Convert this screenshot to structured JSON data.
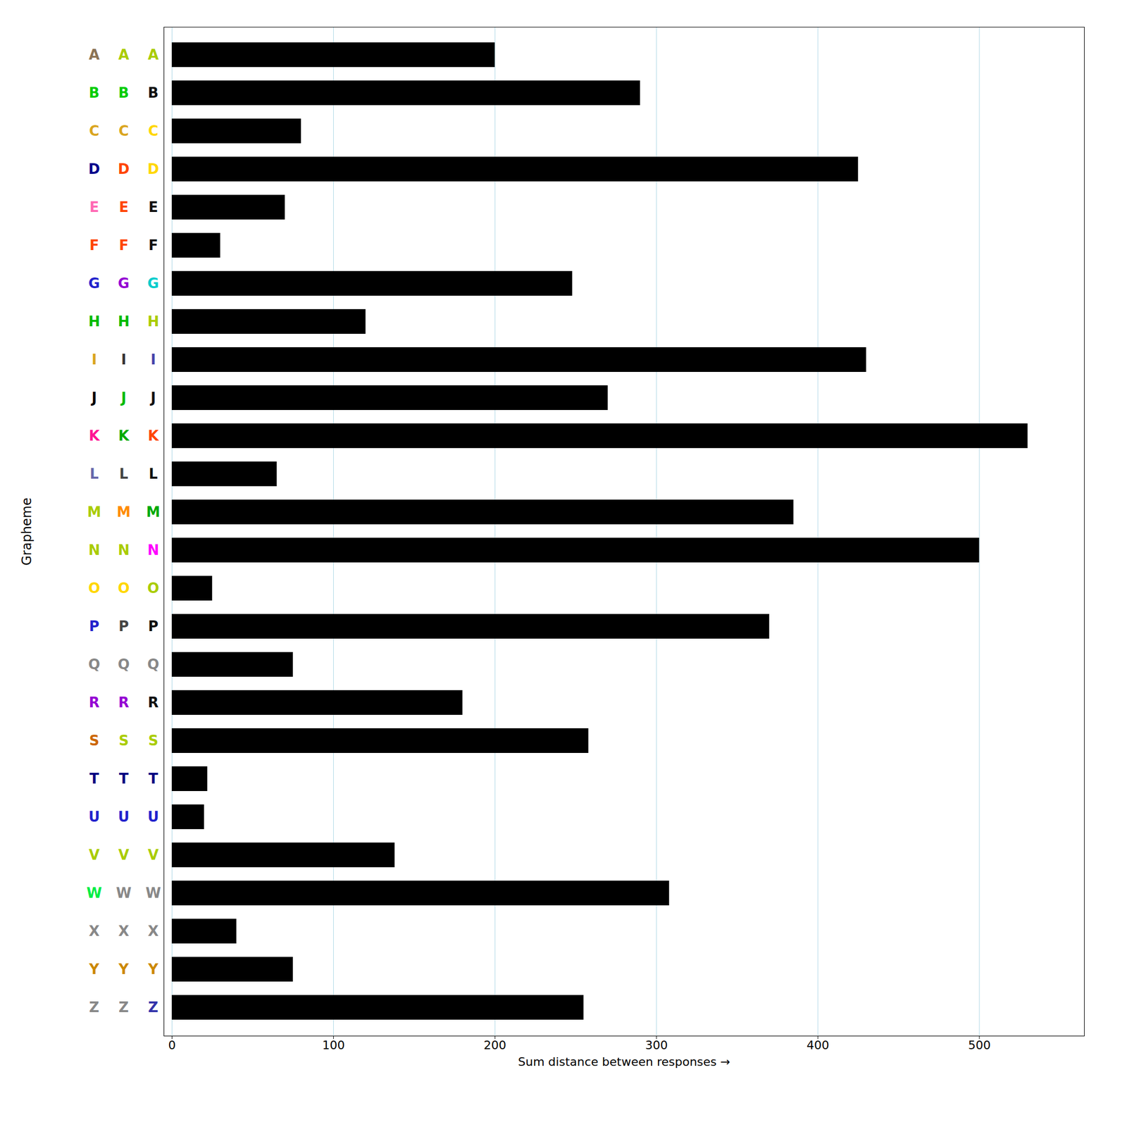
{
  "chart_data": {
    "type": "bar",
    "orientation": "horizontal",
    "categories": [
      "A",
      "B",
      "C",
      "D",
      "E",
      "F",
      "G",
      "H",
      "I",
      "J",
      "K",
      "L",
      "M",
      "N",
      "O",
      "P",
      "Q",
      "R",
      "S",
      "T",
      "U",
      "V",
      "W",
      "X",
      "Y",
      "Z"
    ],
    "values": [
      200,
      290,
      80,
      425,
      70,
      30,
      248,
      120,
      430,
      270,
      530,
      65,
      385,
      500,
      25,
      370,
      75,
      180,
      258,
      22,
      20,
      138,
      308,
      40,
      75,
      255
    ],
    "color": "#000000",
    "label_colors": [
      [
        "#8B7355",
        "#00CC00",
        "#DAA520",
        "#00008B",
        "#FF69B4",
        "#FF4500",
        "#2222CC",
        "#00BB00",
        "#DAA520",
        "#000000",
        "#FF1493",
        "#6666AA",
        "#AACC00",
        "#AACC00",
        "#FFD700",
        "#2222CC",
        "#888888",
        "#9400D3",
        "#CC6600",
        "#000080",
        "#2222CC",
        "#AACC00",
        "#00EE44",
        "#888888",
        "#CC8800",
        "#888888"
      ],
      [
        "#AACC00",
        "#00CC00",
        "#DAA520",
        "#FF4500",
        "#FF4500",
        "#FF4500",
        "#9400D3",
        "#00BB00",
        "#333333",
        "#00BB00",
        "#00AA00",
        "#444444",
        "#FF8C00",
        "#AACC00",
        "#FFD700",
        "#444444",
        "#888888",
        "#9400D3",
        "#AACC00",
        "#000080",
        "#2222CC",
        "#AACC00",
        "#888888",
        "#888888",
        "#CC8800",
        "#888888"
      ],
      [
        "#AACC00",
        "#111111",
        "#FFD700",
        "#FFD700",
        "#111111",
        "#111111",
        "#00CCCC",
        "#AACC00",
        "#4444AA",
        "#111111",
        "#FF4500",
        "#111111",
        "#00AA00",
        "#FF00FF",
        "#AACC00",
        "#111111",
        "#888888",
        "#111111",
        "#AACC00",
        "#000080",
        "#2222CC",
        "#AACC00",
        "#888888",
        "#888888",
        "#CC8800",
        "#3333AA"
      ]
    ],
    "xlabel": "Sum distance between responses",
    "ylabel": "Grapheme",
    "xlim": [
      -5,
      565
    ],
    "xticks": [
      0,
      100,
      200,
      300,
      400,
      500
    ],
    "grid": true
  }
}
